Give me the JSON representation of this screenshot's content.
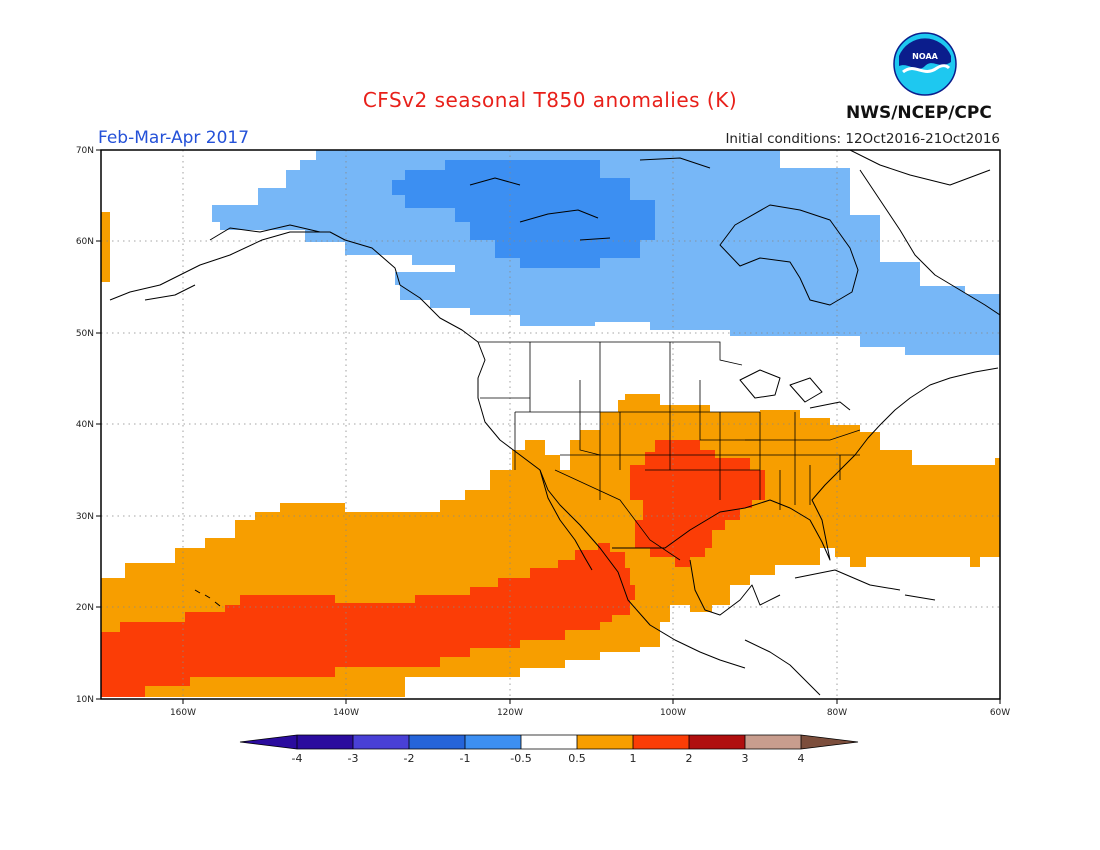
{
  "title": "CFSv2 seasonal T850 anomalies (K)",
  "period": "Feb-Mar-Apr 2017",
  "initial_conditions": "Initial conditions: 12Oct2016-21Oct2016",
  "agency": "NWS/NCEP/CPC",
  "logo_text": "NOAA",
  "colors": {
    "title": "#e8201a",
    "period": "#2451d8",
    "c_m4": "#2b0c9e",
    "c_m3": "#4940d6",
    "c_m2": "#2564d9",
    "c_m1": "#3c8ff2",
    "c_m05": "#77b7f7",
    "c_0": "#ffffff",
    "c_p05": "#f79e00",
    "c_p1": "#fb3d06",
    "c_p2": "#b00f0f",
    "c_p3": "#c89d8e",
    "c_p4": "#7c4e3c"
  },
  "map": {
    "lat_ticks": [
      "10N",
      "20N",
      "30N",
      "40N",
      "50N",
      "60N",
      "70N"
    ],
    "lon_ticks": [
      "160W",
      "140W",
      "120W",
      "100W",
      "80W",
      "60W"
    ]
  },
  "colorbar": {
    "labels": [
      "-4",
      "-3",
      "-2",
      "-1",
      "-0.5",
      "0.5",
      "1",
      "2",
      "3",
      "4"
    ]
  }
}
